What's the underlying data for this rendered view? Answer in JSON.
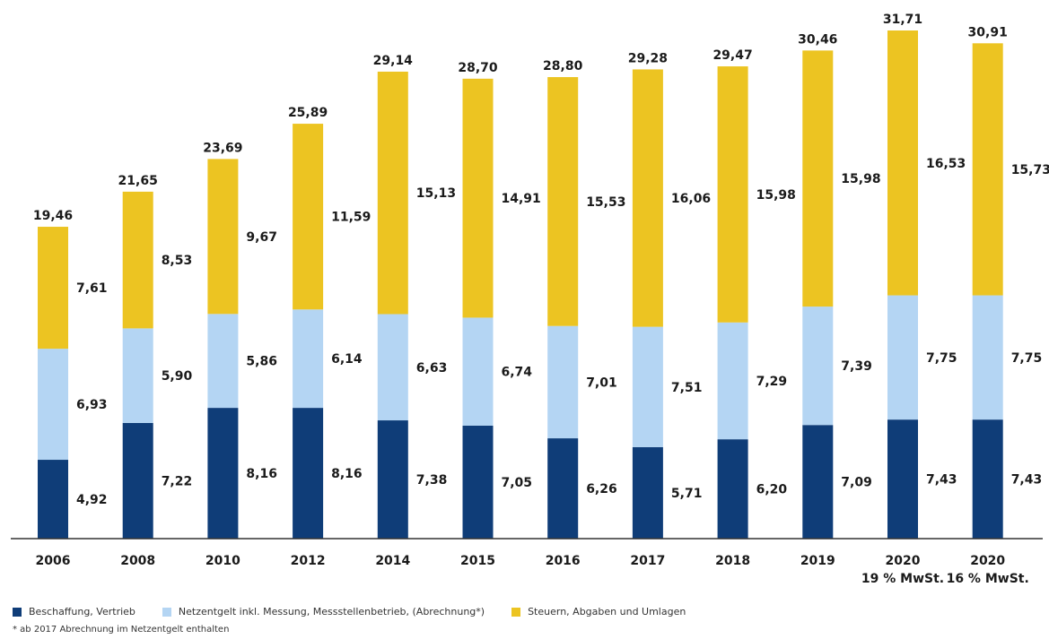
{
  "chart_data": {
    "type": "bar",
    "stacked": true,
    "categories": [
      "2006",
      "2008",
      "2010",
      "2012",
      "2014",
      "2015",
      "2016",
      "2017",
      "2018",
      "2019",
      "2020",
      "2020"
    ],
    "category_sublabels": [
      "",
      "",
      "",
      "",
      "",
      "",
      "",
      "",
      "",
      "",
      "19 % MwSt.",
      "16 % MwSt."
    ],
    "series": [
      {
        "name": "Beschaffung, Vertrieb",
        "color": "#0f3d78",
        "values": [
          4.92,
          7.22,
          8.16,
          8.16,
          7.38,
          7.05,
          6.26,
          5.71,
          6.2,
          7.09,
          7.43,
          7.43
        ],
        "labels": [
          "4,92",
          "7,22",
          "8,16",
          "8,16",
          "7,38",
          "7,05",
          "6,26",
          "5,71",
          "6,20",
          "7,09",
          "7,43",
          "7,43"
        ]
      },
      {
        "name": "Netzentgelt inkl. Messung, Messstellenbetrieb, (Abrechnung*)",
        "color": "#b4d5f3",
        "values": [
          6.93,
          5.9,
          5.86,
          6.14,
          6.63,
          6.74,
          7.01,
          7.51,
          7.29,
          7.39,
          7.75,
          7.75
        ],
        "labels": [
          "6,93",
          "5,90",
          "5,86",
          "6,14",
          "6,63",
          "6,74",
          "7,01",
          "7,51",
          "7,29",
          "7,39",
          "7,75",
          "7,75"
        ]
      },
      {
        "name": "Steuern, Abgaben und Umlagen",
        "color": "#ecc422",
        "values": [
          7.61,
          8.53,
          9.67,
          11.59,
          15.13,
          14.91,
          15.53,
          16.06,
          15.98,
          15.98,
          16.53,
          15.73
        ],
        "labels": [
          "7,61",
          "8,53",
          "9,67",
          "11,59",
          "15,13",
          "14,91",
          "15,53",
          "16,06",
          "15,98",
          "15,98",
          "16,53",
          "15,73"
        ]
      }
    ],
    "totals": [
      19.46,
      21.65,
      23.69,
      25.89,
      29.14,
      28.7,
      28.8,
      29.28,
      29.47,
      30.46,
      31.71,
      30.91
    ],
    "total_labels": [
      "19,46",
      "21,65",
      "23,69",
      "25,89",
      "29,14",
      "28,70",
      "28,80",
      "29,28",
      "29,47",
      "30,46",
      "31,71",
      "30,91"
    ],
    "ylim": [
      0,
      31.71
    ],
    "grid": false,
    "legend_position": "bottom-left"
  },
  "footnote": "* ab 2017 Abrechnung im Netzentgelt enthalten"
}
